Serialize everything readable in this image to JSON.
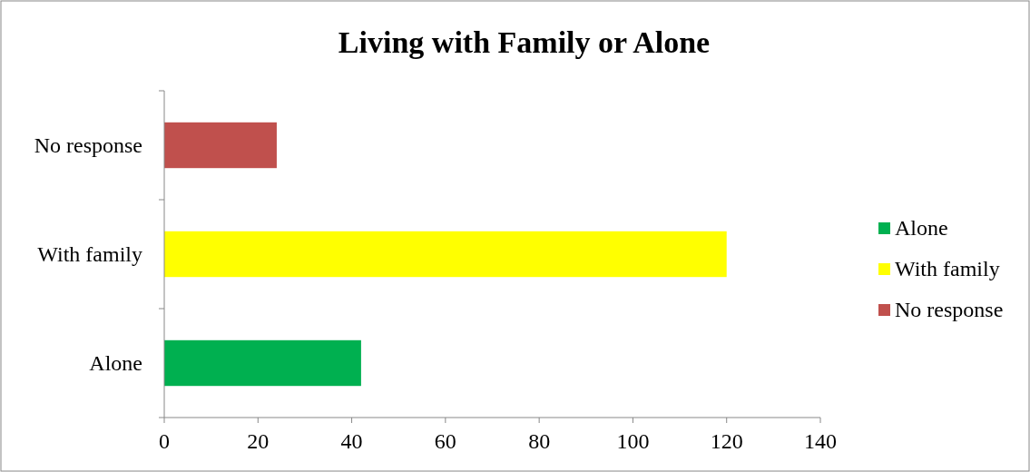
{
  "chart_data": {
    "type": "bar",
    "orientation": "horizontal",
    "title": "Living with Family or Alone",
    "categories": [
      "No response",
      "With family",
      "Alone"
    ],
    "series": [
      {
        "name": "Alone",
        "color": "#00b050",
        "values": [
          null,
          null,
          42
        ]
      },
      {
        "name": "With family",
        "color": "#ffff00",
        "values": [
          null,
          120,
          null
        ]
      },
      {
        "name": "No response",
        "color": "#c0504d",
        "values": [
          24,
          null,
          null
        ]
      }
    ],
    "xlim": [
      0,
      140
    ],
    "xticks": [
      0,
      20,
      40,
      60,
      80,
      100,
      120,
      140
    ],
    "grid": false,
    "legend": "right"
  }
}
